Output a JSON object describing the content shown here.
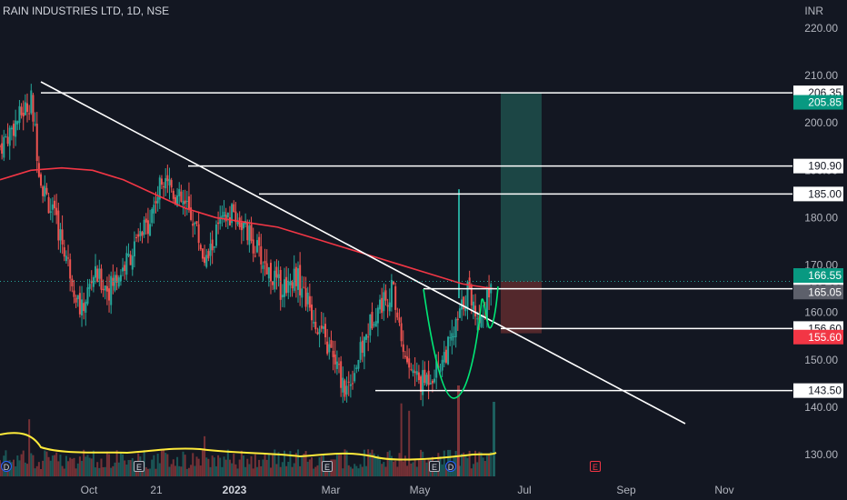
{
  "header": {
    "title": "RAIN INDUSTRIES LTD, 1D, NSE",
    "currency": "INR"
  },
  "colors": {
    "background": "#131722",
    "up": "#26a69a",
    "down": "#ef5350",
    "ma": "#f23645",
    "volume_ma": "#ffeb3b",
    "trendline": "#ffffff",
    "pattern": "#00e676",
    "target_zone": "#1f4f4b",
    "stop_zone": "#5b2a2e",
    "badge_current": "#089981",
    "badge_prev": "#5d606b",
    "badge_stop": "#f23645"
  },
  "chart_data": {
    "type": "candlestick",
    "symbol": "RAIN INDUSTRIES LTD",
    "interval": "1D",
    "exchange": "NSE",
    "ylim": [
      126,
      225
    ],
    "y_ticks": [
      220.0,
      210.0,
      200.0,
      190.0,
      180.0,
      170.0,
      160.0,
      150.0,
      140.0,
      130.0
    ],
    "x_ticks": [
      "Oct",
      "21",
      "2023",
      "Mar",
      "May",
      "Jul",
      "Sep",
      "Nov"
    ],
    "price_line_labels": [
      "206.35",
      "190.90",
      "185.00",
      "165.00",
      "156.60",
      "143.50"
    ],
    "badges": {
      "target": "205.85",
      "current": "166.55",
      "previous": "165.05",
      "stop": "155.60"
    },
    "levels": [
      206.35,
      190.9,
      185.0,
      165.0,
      156.6,
      143.5
    ],
    "events": [
      "D",
      "E",
      "E",
      "E",
      "D",
      "E"
    ],
    "moving_average_path": [
      [
        0,
        188
      ],
      [
        1,
        190
      ],
      [
        2,
        190.5
      ],
      [
        3,
        190
      ],
      [
        4,
        188
      ],
      [
        5,
        185
      ],
      [
        6,
        182
      ],
      [
        7,
        180
      ],
      [
        8,
        179
      ],
      [
        9,
        178
      ],
      [
        10,
        176
      ],
      [
        11,
        174
      ],
      [
        12,
        172
      ],
      [
        13,
        170
      ],
      [
        14,
        168
      ],
      [
        15,
        166
      ],
      [
        16,
        165
      ]
    ],
    "trendline": {
      "from": [
        0,
        208.6
      ],
      "to": [
        16,
        142.5
      ]
    },
    "price_path": [
      [
        0,
        195
      ],
      [
        0.5,
        200
      ],
      [
        1,
        205
      ],
      [
        1.3,
        188
      ],
      [
        2,
        175
      ],
      [
        2.6,
        160
      ],
      [
        3,
        168
      ],
      [
        3.5,
        165
      ],
      [
        4,
        170
      ],
      [
        4.7,
        178
      ],
      [
        5.3,
        190
      ],
      [
        5.6,
        185
      ],
      [
        6.2,
        180
      ],
      [
        6.6,
        170
      ],
      [
        7,
        178
      ],
      [
        7.5,
        181
      ],
      [
        8,
        176
      ],
      [
        8.5,
        170
      ],
      [
        9,
        165
      ],
      [
        9.5,
        168
      ],
      [
        10,
        160
      ],
      [
        10.7,
        150
      ],
      [
        11.1,
        143.5
      ],
      [
        11.6,
        152
      ],
      [
        12,
        160
      ],
      [
        12.6,
        165
      ],
      [
        13,
        150
      ],
      [
        13.5,
        145
      ],
      [
        14,
        148
      ],
      [
        14.5,
        154
      ],
      [
        15,
        165
      ],
      [
        15.4,
        158
      ],
      [
        15.8,
        166.55
      ]
    ]
  }
}
